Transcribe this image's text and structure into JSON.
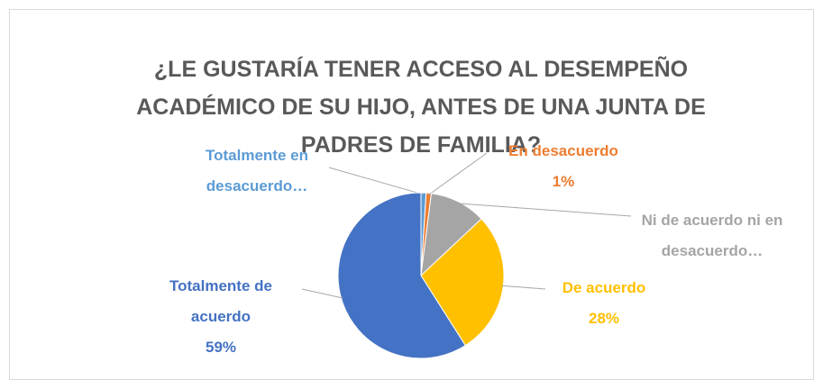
{
  "chart_data": {
    "type": "pie",
    "title": "¿LE GUSTARÍA TENER ACCESO AL DESEMPEÑO ACADÉMICO DE SU HIJO, ANTES DE UNA JUNTA DE PADRES DE FAMILIA?",
    "categories": [
      "Totalmente en desacuerdo…",
      "En desacuerdo",
      "Ni de acuerdo ni en desacuerdo…",
      "De acuerdo",
      "Totalmente de acuerdo"
    ],
    "values": [
      1,
      1,
      11,
      28,
      59
    ],
    "value_labels": [
      null,
      "1%",
      null,
      "28%",
      "59%"
    ],
    "colors": [
      "#5b9bd5",
      "#ed7d31",
      "#a5a5a5",
      "#ffc000",
      "#4472c4"
    ]
  }
}
